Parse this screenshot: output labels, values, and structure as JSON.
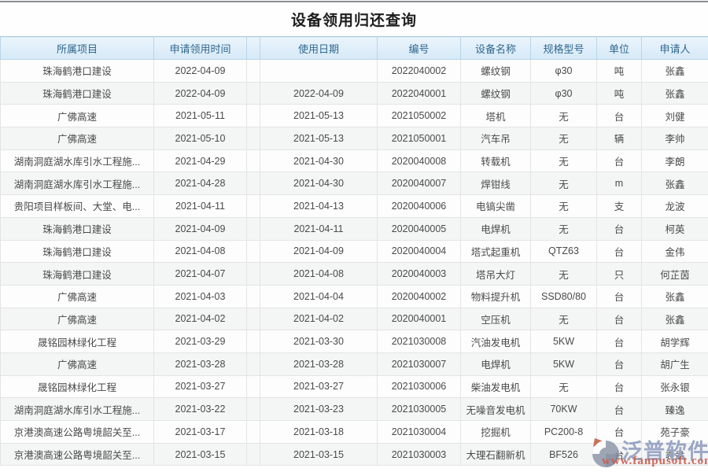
{
  "page": {
    "title": "设备领用归还查询"
  },
  "table": {
    "columns": [
      {
        "key": "project",
        "label": "所属项目"
      },
      {
        "key": "apply_time",
        "label": "申请领用时间"
      },
      {
        "key": "spacer",
        "label": ""
      },
      {
        "key": "use_date",
        "label": "使用日期"
      },
      {
        "key": "number",
        "label": "编号"
      },
      {
        "key": "device",
        "label": "设备名称"
      },
      {
        "key": "spec",
        "label": "规格型号"
      },
      {
        "key": "unit",
        "label": "单位"
      },
      {
        "key": "applicant",
        "label": "申请人"
      }
    ],
    "rows": [
      {
        "project": "珠海鹤港口建设",
        "apply_time": "2022-04-09",
        "use_date": "",
        "number": "2022040002",
        "device": "螺纹钢",
        "spec": "φ30",
        "unit": "吨",
        "applicant": "张鑫"
      },
      {
        "project": "珠海鹤港口建设",
        "apply_time": "2022-04-09",
        "use_date": "2022-04-09",
        "number": "2022040001",
        "device": "螺纹钢",
        "spec": "φ30",
        "unit": "吨",
        "applicant": "张鑫"
      },
      {
        "project": "广佛高速",
        "apply_time": "2021-05-11",
        "use_date": "2021-05-13",
        "number": "2021050002",
        "device": "塔机",
        "spec": "无",
        "unit": "台",
        "applicant": "刘健"
      },
      {
        "project": "广佛高速",
        "apply_time": "2021-05-10",
        "use_date": "2021-05-13",
        "number": "2021050001",
        "device": "汽车吊",
        "spec": "无",
        "unit": "辆",
        "applicant": "李帅"
      },
      {
        "project": "湖南洞庭湖水库引水工程施...",
        "apply_time": "2021-04-29",
        "use_date": "2021-04-30",
        "number": "2020040008",
        "device": "转载机",
        "spec": "无",
        "unit": "台",
        "applicant": "李朗"
      },
      {
        "project": "湖南洞庭湖水库引水工程施...",
        "apply_time": "2021-04-28",
        "use_date": "2021-04-30",
        "number": "2020040007",
        "device": "焊钳线",
        "spec": "无",
        "unit": "m",
        "applicant": "张鑫"
      },
      {
        "project": "贵阳项目样板间、大堂、电...",
        "apply_time": "2021-04-11",
        "use_date": "2021-04-13",
        "number": "2020040006",
        "device": "电镐尖凿",
        "spec": "无",
        "unit": "支",
        "applicant": "龙波"
      },
      {
        "project": "珠海鹤港口建设",
        "apply_time": "2021-04-09",
        "use_date": "2021-04-11",
        "number": "2020040005",
        "device": "电焊机",
        "spec": "无",
        "unit": "台",
        "applicant": "柯英"
      },
      {
        "project": "珠海鹤港口建设",
        "apply_time": "2021-04-08",
        "use_date": "2021-04-09",
        "number": "2020040004",
        "device": "塔式起重机",
        "spec": "QTZ63",
        "unit": "台",
        "applicant": "金伟"
      },
      {
        "project": "珠海鹤港口建设",
        "apply_time": "2021-04-07",
        "use_date": "2021-04-08",
        "number": "2020040003",
        "device": "塔吊大灯",
        "spec": "无",
        "unit": "只",
        "applicant": "何芷茵"
      },
      {
        "project": "广佛高速",
        "apply_time": "2021-04-03",
        "use_date": "2021-04-04",
        "number": "2020040002",
        "device": "物料提升机",
        "spec": "SSD80/80",
        "unit": "台",
        "applicant": "张鑫"
      },
      {
        "project": "广佛高速",
        "apply_time": "2021-04-02",
        "use_date": "2021-04-02",
        "number": "2020040001",
        "device": "空压机",
        "spec": "无",
        "unit": "台",
        "applicant": "张鑫"
      },
      {
        "project": "晟铭园林绿化工程",
        "apply_time": "2021-03-29",
        "use_date": "2021-03-30",
        "number": "2021030008",
        "device": "汽油发电机",
        "spec": "5KW",
        "unit": "台",
        "applicant": "胡学辉"
      },
      {
        "project": "广佛高速",
        "apply_time": "2021-03-28",
        "use_date": "2021-03-28",
        "number": "2021030007",
        "device": "电焊机",
        "spec": "5KW",
        "unit": "台",
        "applicant": "胡广生"
      },
      {
        "project": "晟铭园林绿化工程",
        "apply_time": "2021-03-27",
        "use_date": "2021-03-27",
        "number": "2021030006",
        "device": "柴油发电机",
        "spec": "无",
        "unit": "台",
        "applicant": "张永银"
      },
      {
        "project": "湖南洞庭湖水库引水工程施...",
        "apply_time": "2021-03-22",
        "use_date": "2021-03-23",
        "number": "2021030005",
        "device": "无噪音发电机",
        "spec": "70KW",
        "unit": "台",
        "applicant": "臻逸"
      },
      {
        "project": "京港澳高速公路粤境韶关至...",
        "apply_time": "2021-03-17",
        "use_date": "2021-03-18",
        "number": "2021030004",
        "device": "挖掘机",
        "spec": "PC200-8",
        "unit": "台",
        "applicant": "苑子豪"
      },
      {
        "project": "京港澳高速公路粤境韶关至...",
        "apply_time": "2021-03-15",
        "use_date": "2021-03-15",
        "number": "2021030003",
        "device": "大理石翻新机",
        "spec": "BF526",
        "unit": "台",
        "applicant": "袁盎"
      }
    ]
  },
  "watermark": {
    "brand": "泛普软件",
    "url": "www.fanpusoft.com",
    "brand_color": "#96a2c1",
    "url_color": "#c9594a"
  },
  "colors": {
    "header_bg": "#d6e9f7",
    "header_text": "#30678f",
    "link_blue": "#3e97d3",
    "row_alt": "#f4f5f5",
    "grid_border": "#e4e4e4"
  }
}
